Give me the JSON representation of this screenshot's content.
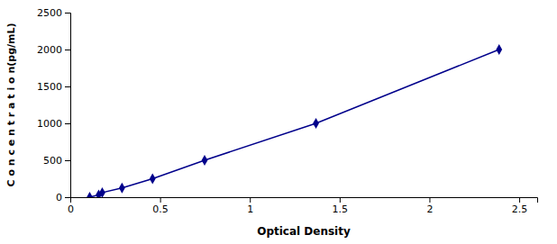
{
  "chart_data": {
    "type": "line",
    "x_label": "Optical Density",
    "y_label": "C o n c e n t r a t i o n(pg/mL)",
    "x": [
      0.108,
      0.158,
      0.178,
      0.288,
      0.458,
      0.748,
      1.368,
      2.388
    ],
    "series": [
      {
        "values": [
          0,
          31.25,
          62.5,
          125,
          250,
          500,
          1000,
          2000
        ],
        "color": "#00008B",
        "marker": "diamond"
      }
    ],
    "xlim": [
      0.0,
      2.6
    ],
    "ylim": [
      0,
      2500
    ],
    "xticks": [
      0,
      0.5,
      1,
      1.5,
      2,
      2.5
    ],
    "yticks": [
      0,
      500,
      1000,
      1500,
      2000,
      2500
    ],
    "grid": false
  }
}
